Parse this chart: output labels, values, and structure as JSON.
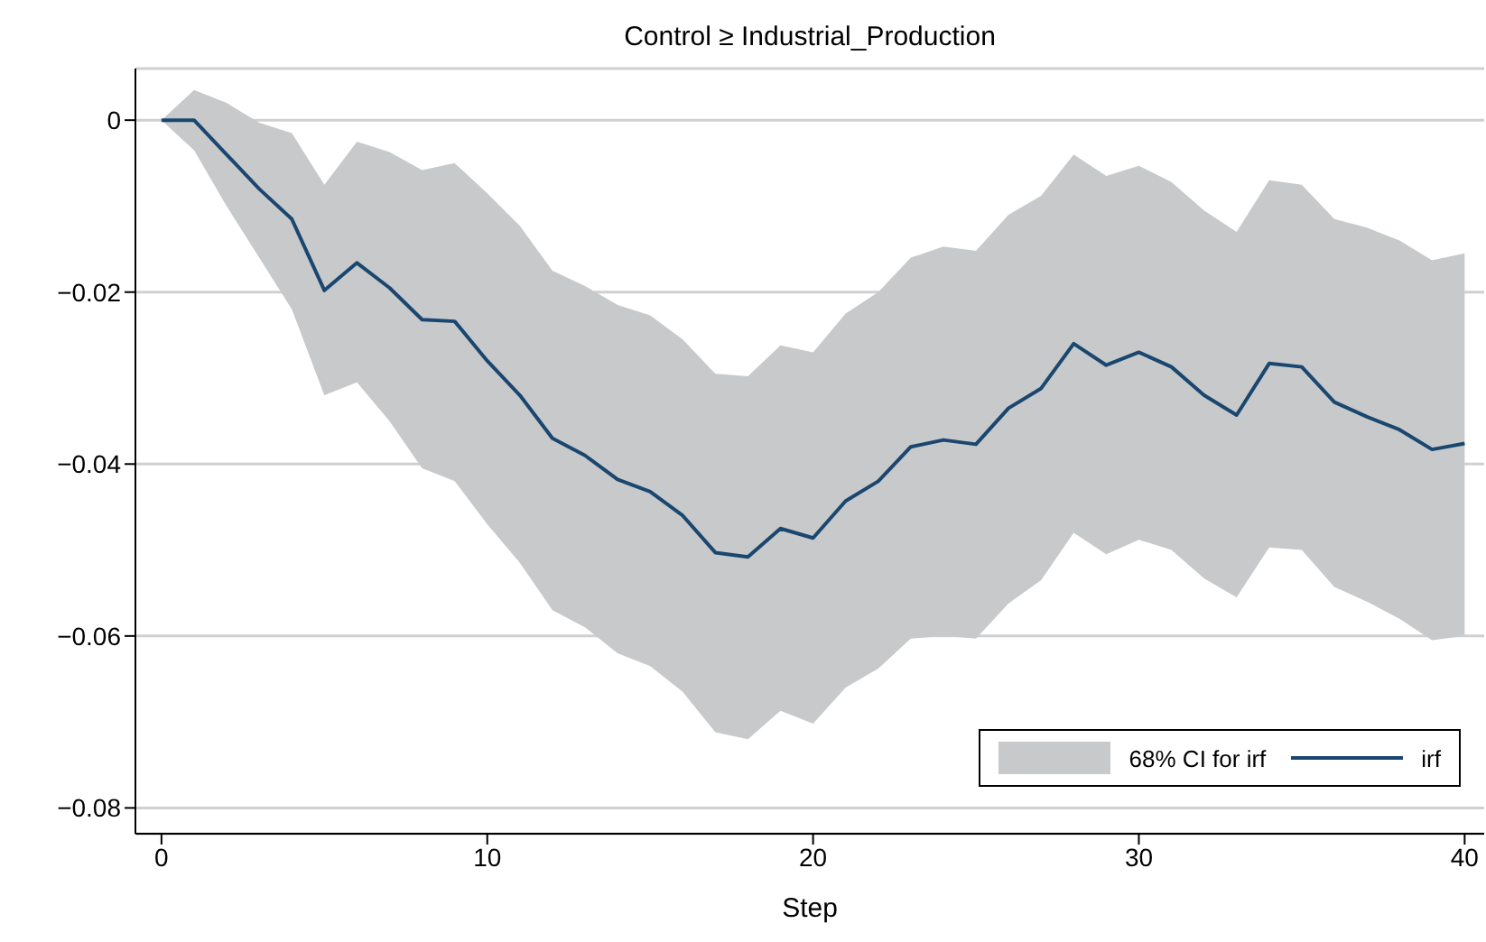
{
  "chart_data": {
    "type": "line",
    "title": "Control ≥ Industrial_Production",
    "xlabel": "Step",
    "x": [
      0,
      1,
      2,
      3,
      4,
      5,
      6,
      7,
      8,
      9,
      10,
      11,
      12,
      13,
      14,
      15,
      16,
      17,
      18,
      19,
      20,
      21,
      22,
      23,
      24,
      25,
      26,
      27,
      28,
      29,
      30,
      31,
      32,
      33,
      34,
      35,
      36,
      37,
      38,
      39,
      40
    ],
    "series": [
      {
        "name": "irf",
        "color": "#1a476f",
        "lower": [
          0,
          -0.0035,
          -0.01,
          -0.016,
          -0.022,
          -0.032,
          -0.0305,
          -0.035,
          -0.0405,
          -0.042,
          -0.047,
          -0.0515,
          -0.057,
          -0.059,
          -0.062,
          -0.0635,
          -0.0665,
          -0.0712,
          -0.072,
          -0.0687,
          -0.0702,
          -0.066,
          -0.0638,
          -0.0603,
          -0.06,
          -0.0603,
          -0.0562,
          -0.0535,
          -0.048,
          -0.0505,
          -0.0488,
          -0.05,
          -0.0533,
          -0.0555,
          -0.0497,
          -0.05,
          -0.0543,
          -0.056,
          -0.058,
          -0.0605,
          -0.06
        ],
        "upper": [
          0,
          0.0035,
          0.002,
          -0.0003,
          -0.0015,
          -0.0075,
          -0.0025,
          -0.0037,
          -0.0058,
          -0.005,
          -0.0085,
          -0.0123,
          -0.0175,
          -0.0193,
          -0.0215,
          -0.0227,
          -0.0255,
          -0.0295,
          -0.0298,
          -0.0262,
          -0.027,
          -0.0225,
          -0.02,
          -0.016,
          -0.0147,
          -0.0152,
          -0.011,
          -0.0088,
          -0.004,
          -0.0065,
          -0.0053,
          -0.0072,
          -0.0105,
          -0.013,
          -0.007,
          -0.0075,
          -0.0115,
          -0.0125,
          -0.014,
          -0.0163,
          -0.0155
        ],
        "values": [
          0,
          0,
          -0.004,
          -0.008,
          -0.0115,
          -0.0198,
          -0.0166,
          -0.0195,
          -0.0232,
          -0.0234,
          -0.028,
          -0.032,
          -0.037,
          -0.039,
          -0.0418,
          -0.0432,
          -0.046,
          -0.0503,
          -0.0508,
          -0.0475,
          -0.0486,
          -0.0443,
          -0.042,
          -0.038,
          -0.0372,
          -0.0377,
          -0.0335,
          -0.0312,
          -0.026,
          -0.0285,
          -0.027,
          -0.0287,
          -0.032,
          -0.0343,
          -0.0283,
          -0.0287,
          -0.0328,
          -0.0345,
          -0.036,
          -0.0383,
          -0.0376
        ]
      }
    ],
    "annotations": [
      "68% CI for irf"
    ],
    "xlim": [
      -0.8,
      40.6
    ],
    "xticks": [
      0,
      10,
      20,
      30,
      40
    ],
    "ylim": [
      -0.083,
      0.006
    ],
    "yticks": [
      {
        "value": 0,
        "label": "0"
      },
      {
        "value": -0.02,
        "label": "−0.02"
      },
      {
        "value": -0.04,
        "label": "−0.04"
      },
      {
        "value": -0.06,
        "label": "−0.06"
      },
      {
        "value": -0.08,
        "label": "−0.08"
      }
    ],
    "grid": "y",
    "legend": "bottom right",
    "marker": "none",
    "line_style": "solid"
  }
}
